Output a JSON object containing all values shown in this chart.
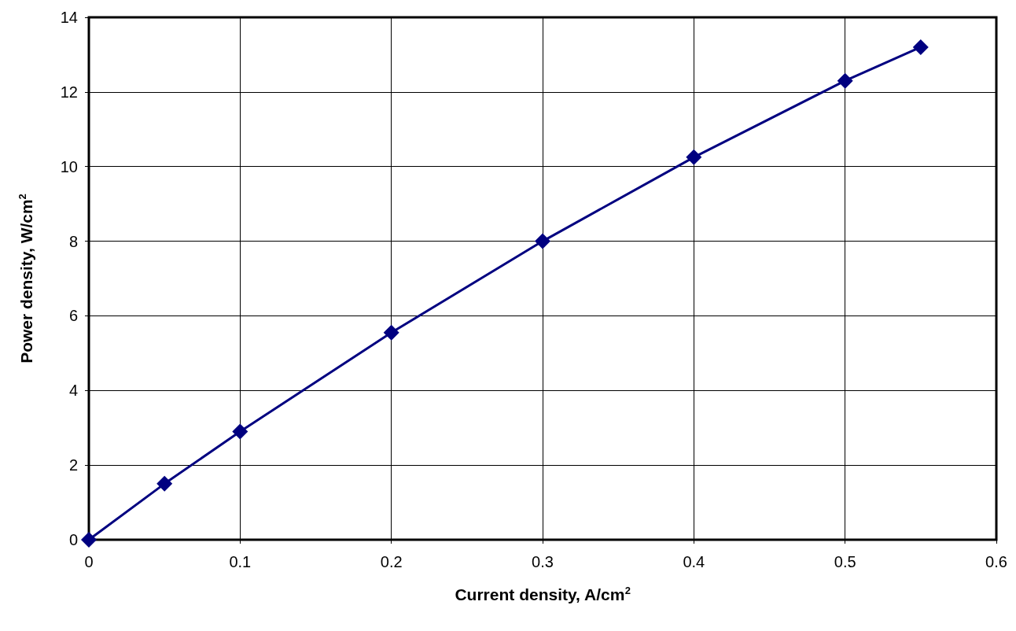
{
  "chart_data": {
    "type": "line",
    "xlabel": "Current density, A/cm$^{2}$",
    "ylabel": "Power density, W/cm$^{2}$",
    "x": [
      0,
      0.05,
      0.1,
      0.2,
      0.3,
      0.4,
      0.5,
      0.55
    ],
    "series": [
      {
        "color": "#000080",
        "values": [
          0,
          1.5,
          2.9,
          5.55,
          8.0,
          10.25,
          12.3,
          13.2
        ]
      }
    ],
    "xlim": [
      0,
      0.6
    ],
    "xticks": [
      0,
      0.1,
      0.2,
      0.3,
      0.4,
      0.5,
      0.6
    ],
    "ylim": [
      0,
      14
    ],
    "yticks": [
      0,
      2,
      4,
      6,
      8,
      10,
      12,
      14
    ],
    "grid": true,
    "marker": "diamond",
    "line_style": "solid"
  }
}
